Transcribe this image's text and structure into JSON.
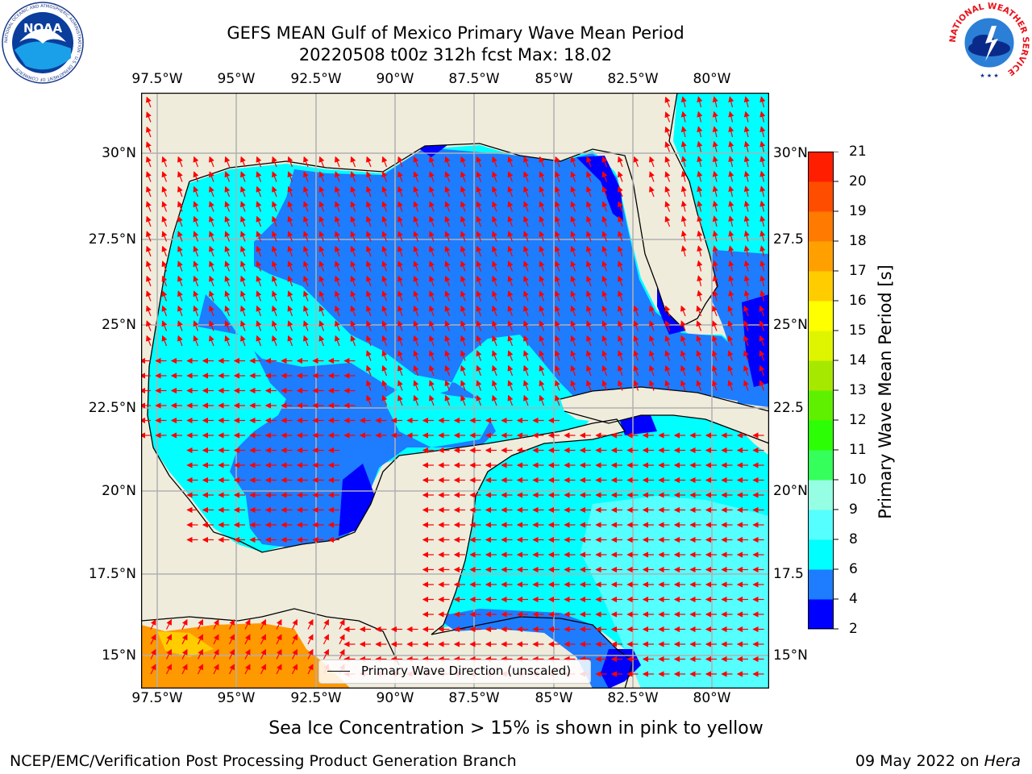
{
  "header": {
    "title_line1": "GEFS MEAN Gulf of Mexico Primary Wave Mean Period",
    "title_line2": "20220508 t00z 312h fcst   Max: 18.02"
  },
  "map": {
    "lon_ticks": [
      "97.5°W",
      "95°W",
      "92.5°W",
      "90°W",
      "87.5°W",
      "85°W",
      "82.5°W",
      "80°W"
    ],
    "lat_ticks": [
      "30°N",
      "27.5°N",
      "25°N",
      "22.5°N",
      "20°N",
      "17.5°N",
      "15°N"
    ],
    "lat_ticks_right": [
      "30°N",
      "27.5",
      "25°N",
      "22.5",
      "20°N",
      "17.5",
      "15°N"
    ],
    "legend_label": "Primary Wave Direction (unscaled)",
    "colors": {
      "land": "#efecdc",
      "coast": "#000000",
      "grid": "#b0b0b0",
      "arrow": "#ff0000"
    }
  },
  "colorbar": {
    "label": "Primary Wave Mean Period [s]",
    "ticks": [
      "2",
      "4",
      "6",
      "8",
      "9",
      "10",
      "11",
      "12",
      "13",
      "14",
      "15",
      "16",
      "17",
      "18",
      "19",
      "20",
      "21"
    ],
    "colors": [
      "#0000ff",
      "#1e7cff",
      "#00ffff",
      "#55ffff",
      "#96ffe3",
      "#35ff5a",
      "#2cff05",
      "#5ff000",
      "#a6e800",
      "#dff500",
      "#ffff00",
      "#ffcc00",
      "#ffa000",
      "#ff7a00",
      "#ff4d00",
      "#ff1e00"
    ]
  },
  "footer": {
    "sea_ice_note": "Sea Ice Concentration > 15% is shown in pink to yellow",
    "credit": "NCEP/EMC/Verification Post Processing Product Generation Branch",
    "date": "09 May 2022 on",
    "machine": "Hera"
  },
  "logos": {
    "noaa_text": "NOAA",
    "noaa_ring": "NATIONAL OCEANIC AND ATMOSPHERIC ADMINISTRATION · U.S. DEPARTMENT OF COMMERCE",
    "nws_ring": "NATIONAL WEATHER SERVICE"
  }
}
